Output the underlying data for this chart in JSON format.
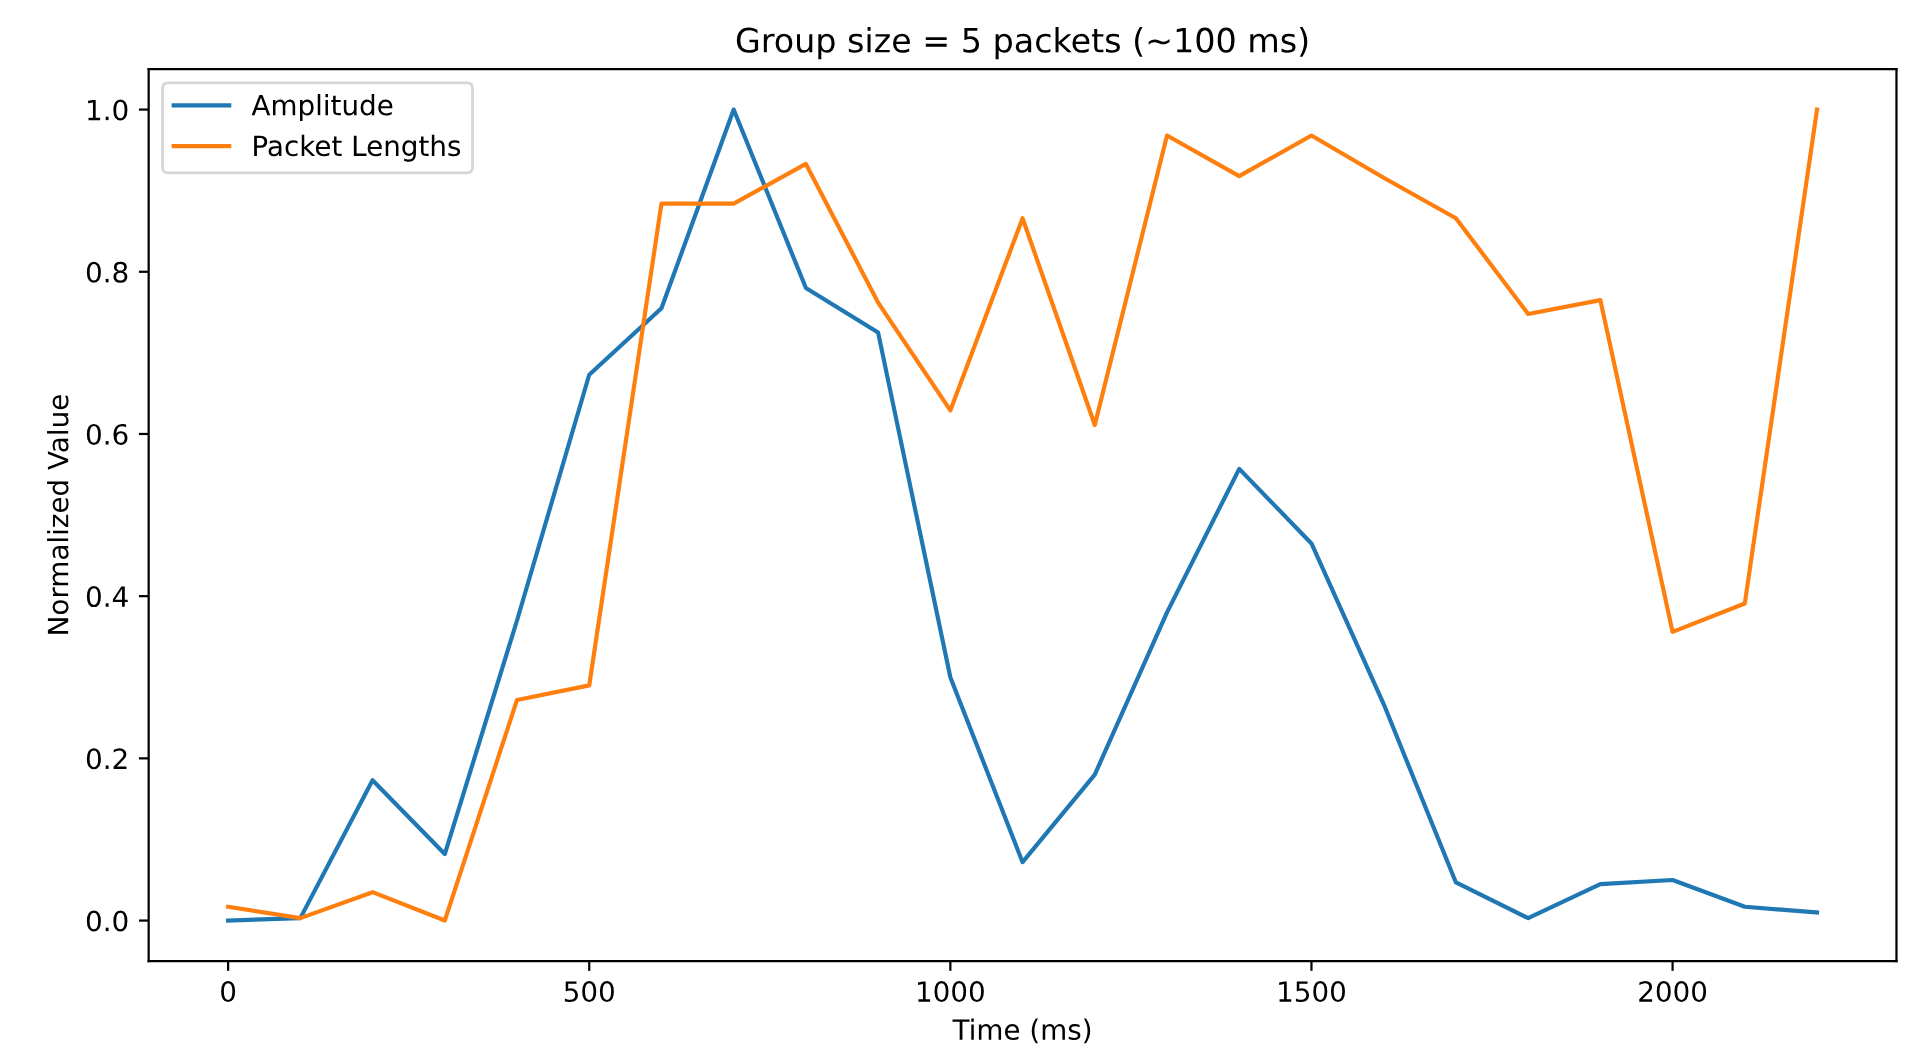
{
  "chart_data": {
    "type": "line",
    "title": "Group size = 5 packets (~100 ms)",
    "xlabel": "Time (ms)",
    "ylabel": "Normalized Value",
    "x": [
      0,
      100,
      200,
      300,
      400,
      500,
      600,
      700,
      800,
      900,
      1000,
      1100,
      1200,
      1300,
      1400,
      1500,
      1600,
      1700,
      1800,
      1900,
      2000,
      2100,
      2200
    ],
    "series": [
      {
        "name": "Amplitude",
        "color": "#1f77b4",
        "values": [
          0.0,
          0.003,
          0.173,
          0.082,
          0.37,
          0.673,
          0.755,
          1.0,
          0.78,
          0.725,
          0.3,
          0.072,
          0.18,
          0.38,
          0.557,
          0.465,
          0.267,
          0.047,
          0.003,
          0.045,
          0.05,
          0.017,
          0.01
        ]
      },
      {
        "name": "Packet Lengths",
        "color": "#ff7f0e",
        "values": [
          0.017,
          0.003,
          0.035,
          0.0,
          0.272,
          0.29,
          0.884,
          0.884,
          0.933,
          0.762,
          0.629,
          0.866,
          0.611,
          0.968,
          0.918,
          0.968,
          0.916,
          0.866,
          0.748,
          0.765,
          0.356,
          0.391,
          1.0
        ]
      }
    ],
    "xlim": [
      -110,
      2310
    ],
    "ylim": [
      -0.05,
      1.05
    ],
    "xticks": [
      0,
      500,
      1000,
      1500,
      2000
    ],
    "yticks": [
      {
        "value": 0,
        "label": "0.0"
      },
      {
        "value": 0.2,
        "label": "0.2"
      },
      {
        "value": 0.4,
        "label": "0.4"
      },
      {
        "value": 0.6,
        "label": "0.6"
      },
      {
        "value": 0.8,
        "label": "0.8"
      },
      {
        "value": 1,
        "label": "1.0"
      }
    ],
    "legend": "top left",
    "grid": false,
    "marker": "none",
    "line_style": "solid"
  }
}
